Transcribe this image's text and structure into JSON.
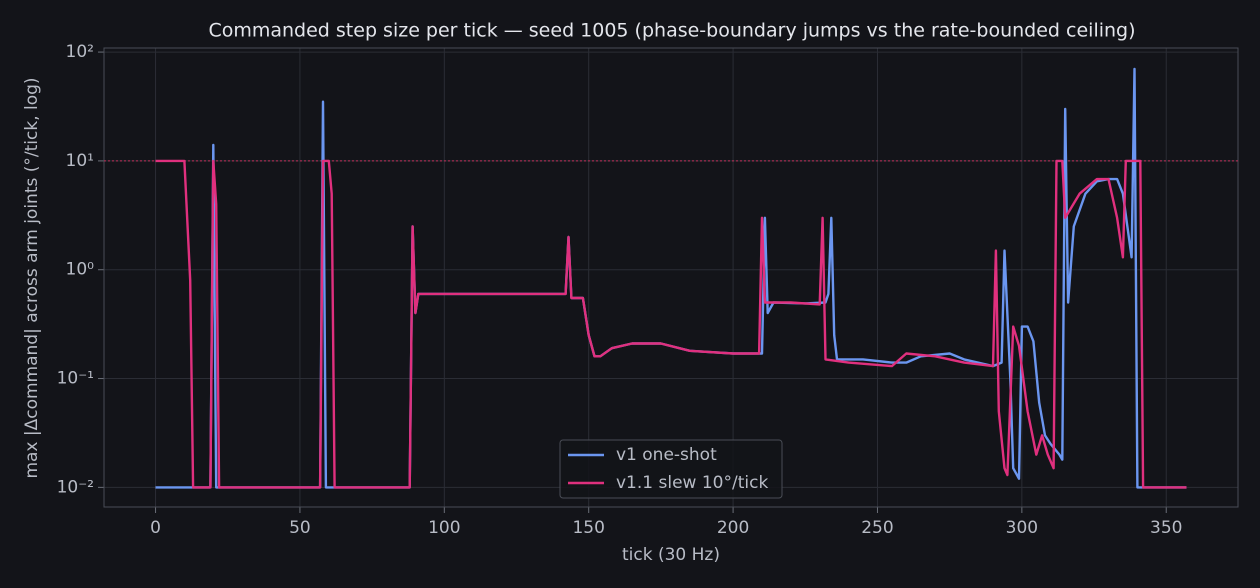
{
  "chart_data": {
    "type": "line",
    "title": "Commanded step size per tick — seed 1005 (phase-boundary jumps vs the rate-bounded ceiling)",
    "x_label": "tick (30 Hz)",
    "y_label": "max |Δcommand| across arm joints (°/tick, log)",
    "y_scale": "log",
    "grid": true,
    "legend": "lower center",
    "xlim": [
      -17.85,
      374.85
    ],
    "xticks": [
      0,
      50,
      100,
      150,
      200,
      250,
      300,
      350
    ],
    "ylim": [
      0.0066,
      109
    ],
    "yticks": [
      {
        "value": 0.01,
        "label": "10⁻²"
      },
      {
        "value": 0.1,
        "label": "10⁻¹"
      },
      {
        "value": 1,
        "label": "10⁰"
      },
      {
        "value": 10,
        "label": "10¹"
      },
      {
        "value": 100,
        "label": "10²"
      }
    ],
    "reference_line": {
      "value": 10,
      "color": "#c0305a"
    },
    "series": [
      {
        "name": "v1 one-shot",
        "color": "#6b96f0",
        "x": [
          0,
          19,
          20,
          21,
          57,
          58,
          59,
          88,
          89,
          90,
          91,
          142,
          143,
          144,
          148,
          150,
          152,
          154,
          158,
          165,
          175,
          185,
          200,
          210,
          211,
          212,
          214,
          225,
          232,
          233,
          234,
          235,
          236,
          245,
          255,
          260,
          265,
          275,
          280,
          290,
          293,
          294,
          296,
          297,
          299,
          300,
          302,
          304,
          306,
          308,
          310,
          313,
          314,
          315,
          316,
          318,
          322,
          326,
          330,
          333,
          335,
          338,
          339,
          340,
          357
        ],
        "values": [
          0.01,
          0.01,
          14,
          0.01,
          0.01,
          35,
          0.01,
          0.01,
          2.5,
          0.4,
          0.6,
          0.6,
          2,
          0.55,
          0.55,
          0.25,
          0.16,
          0.16,
          0.19,
          0.21,
          0.21,
          0.18,
          0.17,
          0.17,
          3,
          0.4,
          0.5,
          0.49,
          0.5,
          0.6,
          3,
          0.25,
          0.15,
          0.15,
          0.14,
          0.14,
          0.16,
          0.17,
          0.15,
          0.13,
          0.14,
          1.5,
          0.1,
          0.015,
          0.012,
          0.3,
          0.3,
          0.22,
          0.06,
          0.03,
          0.025,
          0.02,
          0.018,
          30,
          0.5,
          2.5,
          5,
          6.5,
          6.8,
          6.8,
          5,
          1.3,
          70,
          0.01,
          0.01
        ]
      },
      {
        "name": "v1.1 slew 10°/tick",
        "color": "#e0307e",
        "x": [
          0,
          10,
          12,
          13,
          19,
          20,
          21,
          22,
          57,
          58,
          60,
          61,
          62,
          88,
          89,
          90,
          91,
          142,
          143,
          144,
          148,
          150,
          152,
          154,
          158,
          165,
          175,
          185,
          200,
          209,
          210,
          211,
          220,
          230,
          231,
          232,
          240,
          255,
          260,
          270,
          280,
          290,
          291,
          292,
          294,
          295,
          297,
          299,
          302,
          305,
          307,
          309,
          311,
          312,
          314,
          315,
          320,
          326,
          330,
          333,
          335,
          336,
          341,
          342,
          357
        ],
        "values": [
          10,
          10,
          0.8,
          0.01,
          0.01,
          10,
          4,
          0.01,
          0.01,
          10,
          10,
          5,
          0.01,
          0.01,
          2.5,
          0.4,
          0.6,
          0.6,
          2,
          0.55,
          0.55,
          0.25,
          0.16,
          0.16,
          0.19,
          0.21,
          0.21,
          0.18,
          0.17,
          0.17,
          3,
          0.5,
          0.5,
          0.48,
          3,
          0.15,
          0.14,
          0.13,
          0.17,
          0.16,
          0.14,
          0.13,
          1.5,
          0.05,
          0.015,
          0.013,
          0.3,
          0.2,
          0.05,
          0.02,
          0.03,
          0.02,
          0.015,
          10,
          10,
          3,
          5,
          6.8,
          6.8,
          3,
          1.3,
          10,
          10,
          0.01,
          0.01
        ]
      }
    ]
  }
}
